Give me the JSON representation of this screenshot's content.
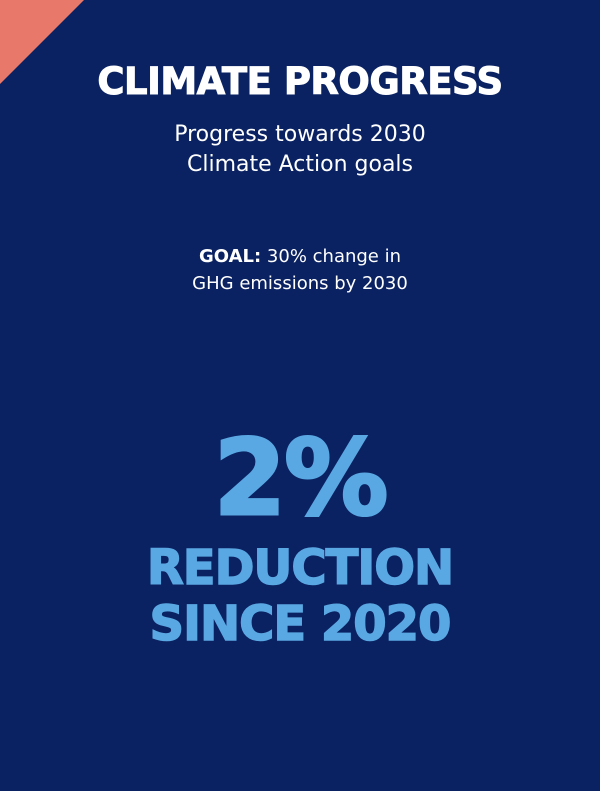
{
  "colors": {
    "background": "#0a2262",
    "accent_corner": "#e8786a",
    "highlight": "#5aa8e3",
    "text": "#ffffff"
  },
  "header": {
    "title": "CLIMATE PROGRESS",
    "subtitle_line1": "Progress towards 2030",
    "subtitle_line2": "Climate Action goals"
  },
  "goal": {
    "label": "GOAL:",
    "line1_rest": " 30% change in",
    "line2": "GHG emissions by 2030"
  },
  "stat": {
    "value": "2%",
    "caption_line1": "REDUCTION",
    "caption_line2": "SINCE 2020"
  }
}
